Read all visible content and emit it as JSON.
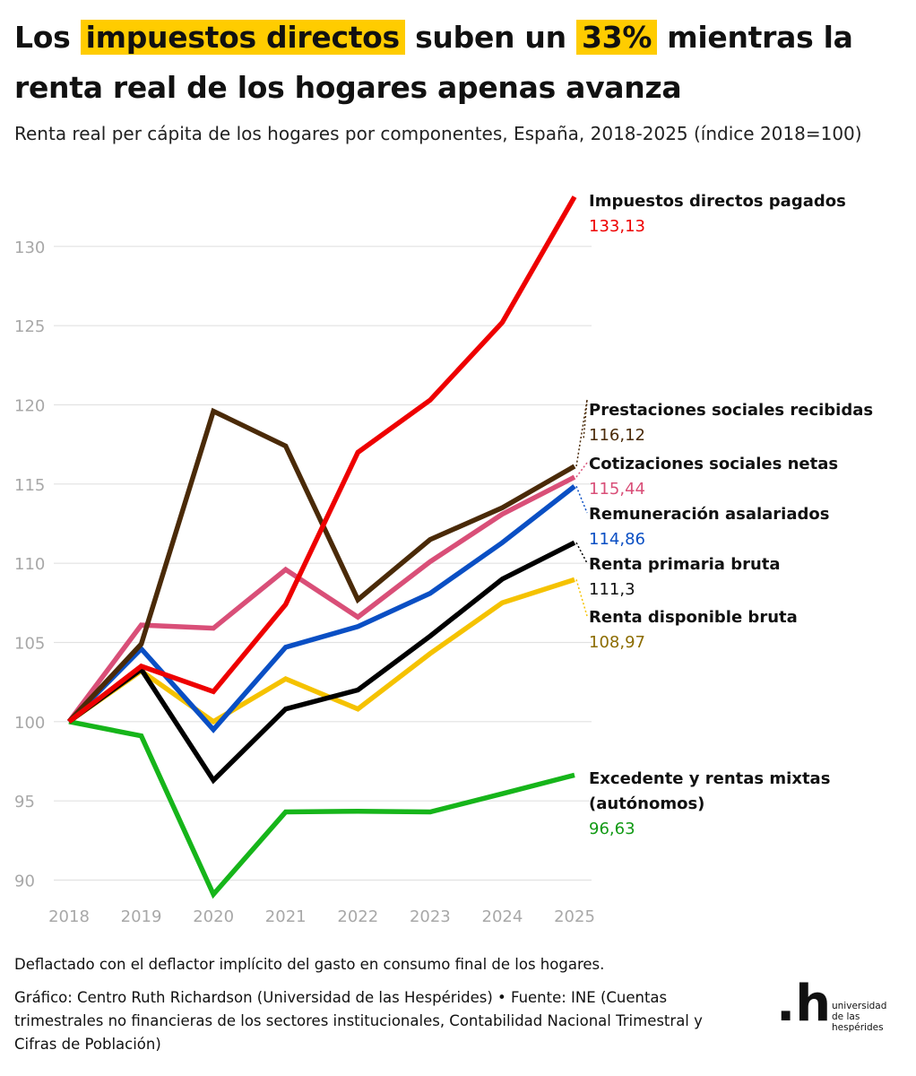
{
  "title": {
    "p1": "Los ",
    "hl1": "impuestos directos",
    "p2": " suben un ",
    "hl2": "33%",
    "p3": " mientras la renta real de los hogares apenas avanza"
  },
  "subtitle": "Renta real per cápita de los hogares por componentes, España, 2018-2025 (índice 2018=100)",
  "footnote": "Deflactado con el deflactor implícito del gasto en consumo final de los hogares.",
  "source": "Gráfico: Centro Ruth Richardson (Universidad de las Hespérides) • Fuente: INE (Cuentas trimestrales no financieras de los sectores institucionales, Contabilidad Nacional Trimestral y Cifras de Población)",
  "logo": {
    "mark": ".h",
    "line1": "universidad",
    "line2": "de las",
    "line3": "hespérides"
  },
  "chart_data": {
    "type": "line",
    "title": "Renta real per cápita de los hogares por componentes, España, 2018-2025 (índice 2018=100)",
    "x": [
      2018,
      2019,
      2020,
      2021,
      2022,
      2023,
      2024,
      2025
    ],
    "ylim": [
      88.5,
      133.5
    ],
    "yticks": [
      90,
      95,
      100,
      105,
      110,
      115,
      120,
      125,
      130
    ],
    "grid": true,
    "legend": "direct labels at line ends",
    "series": [
      {
        "name": "Renta disponible bruta",
        "label_value": "108,97",
        "color": "#f5c200",
        "label_color": "#8c6c00",
        "values": [
          100,
          103.2,
          100.0,
          102.7,
          100.8,
          104.3,
          107.5,
          108.97
        ]
      },
      {
        "name": "Remuneración asalariados",
        "label_value": "114,86",
        "color": "#0a4fc4",
        "label_color": "#0a4fc4",
        "values": [
          100,
          104.6,
          99.5,
          104.7,
          106.0,
          108.1,
          111.3,
          114.86
        ]
      },
      {
        "name": "Cotizaciones sociales netas",
        "label_value": "115,44",
        "color": "#d94f78",
        "label_color": "#d94f78",
        "values": [
          100,
          106.1,
          105.9,
          109.6,
          106.6,
          110.1,
          113.1,
          115.44
        ]
      },
      {
        "name": "Prestaciones sociales recibidas",
        "label_value": "116,12",
        "color": "#4a2a08",
        "label_color": "#4a2a08",
        "values": [
          100,
          104.9,
          119.6,
          117.4,
          107.7,
          111.5,
          113.5,
          116.12
        ]
      },
      {
        "name": "Excedente y rentas mixtas (autónomos)",
        "label_value": "96,63",
        "color": "#16b51a",
        "label_color": "#129a15",
        "values": [
          100,
          99.1,
          89.1,
          94.3,
          94.35,
          94.3,
          95.45,
          96.63
        ]
      },
      {
        "name": "Renta primaria bruta",
        "label_value": "111,3",
        "color": "#000000",
        "label_color": "#111111",
        "values": [
          100,
          103.3,
          96.3,
          100.8,
          102.0,
          105.4,
          109.0,
          111.3
        ]
      },
      {
        "name": "Impuestos directos pagados",
        "label_value": "133,13",
        "color": "#ee0000",
        "label_color": "#ee0000",
        "values": [
          100,
          103.5,
          101.9,
          107.4,
          117.0,
          120.3,
          125.2,
          133.13
        ]
      }
    ],
    "labels": [
      {
        "series": "Impuestos directos pagados",
        "lines": [
          "Impuestos directos pagados"
        ],
        "value": "133,13",
        "value_color": "#ee0000",
        "leader": false
      },
      {
        "series": "Prestaciones sociales recibidas",
        "lines": [
          "Prestaciones sociales recibidas"
        ],
        "value": "116,12",
        "value_color": "#4a2a08",
        "leader": true,
        "leader_color": "#4a2a08"
      },
      {
        "series": "Cotizaciones sociales netas",
        "lines": [
          "Cotizaciones sociales netas"
        ],
        "value": "115,44",
        "value_color": "#d94f78",
        "leader": true,
        "leader_color": "#d94f78"
      },
      {
        "series": "Remuneración asalariados",
        "lines": [
          "Remuneración asalariados"
        ],
        "value": "114,86",
        "value_color": "#0a4fc4",
        "leader": true,
        "leader_color": "#0a4fc4"
      },
      {
        "series": "Renta primaria bruta",
        "lines": [
          "Renta primaria bruta"
        ],
        "value": "111,3",
        "value_color": "#111111",
        "leader": true,
        "leader_color": "#000000"
      },
      {
        "series": "Renta disponible bruta",
        "lines": [
          "Renta disponible bruta"
        ],
        "value": "108,97",
        "value_color": "#8c6c00",
        "leader": true,
        "leader_color": "#f5c200"
      },
      {
        "series": "Excedente y rentas mixtas (autónomos)",
        "lines": [
          "Excedente y rentas mixtas",
          "(autónomos)"
        ],
        "value": "96,63",
        "value_color": "#129a15",
        "leader": false
      }
    ]
  }
}
